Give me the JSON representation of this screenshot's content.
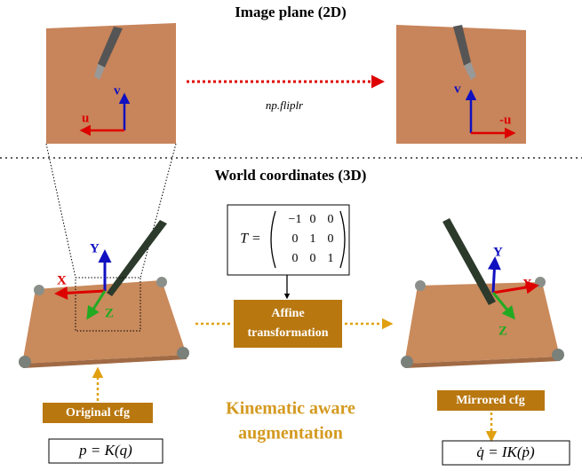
{
  "header": {
    "title": "Image plane (2D)"
  },
  "image_plane": {
    "flip_label": "np.fliplr",
    "left_axes": {
      "u": "u",
      "v": "v"
    },
    "right_axes": {
      "u": "-u",
      "v": "v"
    }
  },
  "world": {
    "title": "World coordinates (3D)",
    "matrix": {
      "lhs": "T =",
      "rows": [
        [
          "−1",
          "0",
          "0"
        ],
        [
          "0",
          "1",
          "0"
        ],
        [
          "0",
          "0",
          "1"
        ]
      ]
    },
    "transform_box": [
      "Affine",
      "transformation"
    ],
    "left_axes": {
      "x": "X",
      "y": "Y",
      "z": "Z"
    },
    "right_axes": {
      "x": "X",
      "y": "Y",
      "z": "Z"
    },
    "original_cfg": "Original cfg",
    "mirrored_cfg": "Mirrored cfg",
    "center_text": [
      "Kinematic aware",
      "augmentation"
    ],
    "left_formula": "p = K(q)",
    "right_formula": "q̇ = IK(ṗ)"
  }
}
